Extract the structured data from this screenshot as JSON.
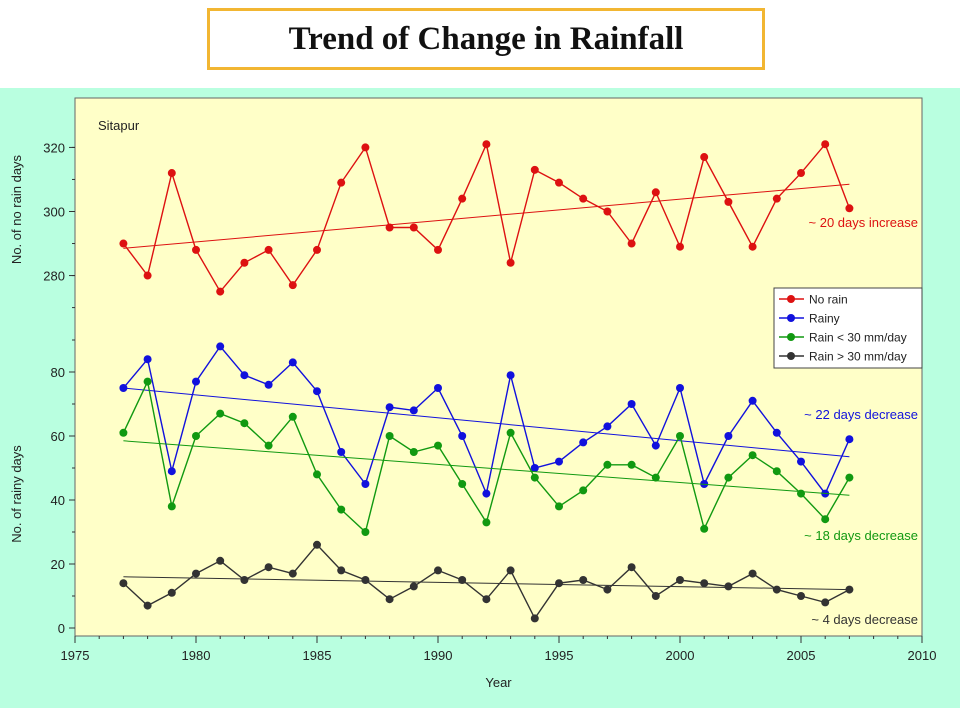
{
  "slide": {
    "title": "Trend of  Change in Rainfall"
  },
  "colors": {
    "plot_bg": "#ffffc8",
    "outer_bg": "#b9ffe0",
    "no_rain": "#dd1111",
    "rainy": "#1111dd",
    "rain_lt30": "#119911",
    "rain_gt30": "#333333"
  },
  "chart_data": [
    {
      "type": "line",
      "panel": "top",
      "station_label": "Sitapur",
      "ylabel": "No. of no rain days",
      "ylim": [
        268,
        327
      ],
      "yticks": [
        280,
        300,
        320
      ],
      "xlim": [
        1975,
        2010
      ],
      "series": [
        {
          "name": "No rain",
          "color": "#dd1111",
          "x": [
            1977,
            1978,
            1979,
            1980,
            1981,
            1982,
            1983,
            1984,
            1985,
            1986,
            1987,
            1988,
            1989,
            1990,
            1991,
            1992,
            1993,
            1994,
            1995,
            1996,
            1997,
            1998,
            1999,
            2000,
            2001,
            2002,
            2003,
            2004,
            2005,
            2006,
            2007
          ],
          "values": [
            290,
            280,
            312,
            288,
            275,
            284,
            288,
            277,
            288,
            309,
            320,
            295,
            295,
            288,
            304,
            321,
            284,
            313,
            309,
            304,
            300,
            290,
            306,
            289,
            317,
            303,
            289,
            304,
            312,
            321,
            301
          ],
          "trend": {
            "x": [
              1977,
              2007
            ],
            "y": [
              288.5,
              308.5
            ],
            "label": "~ 20 days increase"
          }
        }
      ]
    },
    {
      "type": "line",
      "panel": "bottom",
      "ylabel": "No. of rainy days",
      "xlabel": "Year",
      "ylim": [
        0,
        90
      ],
      "yticks": [
        0,
        20,
        40,
        60,
        80
      ],
      "xlim": [
        1975,
        2010
      ],
      "xticks": [
        1975,
        1980,
        1985,
        1990,
        1995,
        2000,
        2005,
        2010
      ],
      "series": [
        {
          "name": "Rainy",
          "color": "#1111dd",
          "x": [
            1977,
            1978,
            1979,
            1980,
            1981,
            1982,
            1983,
            1984,
            1985,
            1986,
            1987,
            1988,
            1989,
            1990,
            1991,
            1992,
            1993,
            1994,
            1995,
            1996,
            1997,
            1998,
            1999,
            2000,
            2001,
            2002,
            2003,
            2004,
            2005,
            2006,
            2007
          ],
          "values": [
            75,
            84,
            49,
            77,
            88,
            79,
            76,
            83,
            74,
            55,
            45,
            69,
            68,
            75,
            60,
            42,
            79,
            50,
            52,
            58,
            63,
            70,
            57,
            75,
            45,
            60,
            71,
            61,
            52,
            42,
            59
          ],
          "trend": {
            "x": [
              1977,
              2007
            ],
            "y": [
              75,
              53.5
            ],
            "label": "~ 22 days decrease"
          }
        },
        {
          "name": "Rain < 30 mm/day",
          "color": "#119911",
          "x": [
            1977,
            1978,
            1979,
            1980,
            1981,
            1982,
            1983,
            1984,
            1985,
            1986,
            1987,
            1988,
            1989,
            1990,
            1991,
            1992,
            1993,
            1994,
            1995,
            1996,
            1997,
            1998,
            1999,
            2000,
            2001,
            2002,
            2003,
            2004,
            2005,
            2006,
            2007
          ],
          "values": [
            61,
            77,
            38,
            60,
            67,
            64,
            57,
            66,
            48,
            37,
            30,
            60,
            55,
            57,
            45,
            33,
            61,
            47,
            38,
            43,
            51,
            51,
            47,
            60,
            31,
            47,
            54,
            49,
            42,
            34,
            47
          ],
          "trend": {
            "x": [
              1977,
              2007
            ],
            "y": [
              58.5,
              41.5
            ],
            "label": "~ 18 days decrease"
          }
        },
        {
          "name": "Rain > 30 mm/day",
          "color": "#333333",
          "x": [
            1977,
            1978,
            1979,
            1980,
            1981,
            1982,
            1983,
            1984,
            1985,
            1986,
            1987,
            1988,
            1989,
            1990,
            1991,
            1992,
            1993,
            1994,
            1995,
            1996,
            1997,
            1998,
            1999,
            2000,
            2001,
            2002,
            2003,
            2004,
            2005,
            2006,
            2007
          ],
          "values": [
            14,
            7,
            11,
            17,
            21,
            15,
            19,
            17,
            26,
            18,
            15,
            9,
            13,
            18,
            15,
            9,
            18,
            3,
            14,
            15,
            12,
            19,
            10,
            15,
            14,
            13,
            17,
            12,
            10,
            8,
            12
          ],
          "trend": {
            "x": [
              1977,
              2007
            ],
            "y": [
              16,
              12
            ],
            "label": "~ 4 days decrease"
          }
        }
      ]
    }
  ],
  "legend": {
    "placement": "right",
    "entries": [
      "No rain",
      "Rainy",
      "Rain < 30 mm/day",
      "Rain > 30 mm/day"
    ]
  }
}
